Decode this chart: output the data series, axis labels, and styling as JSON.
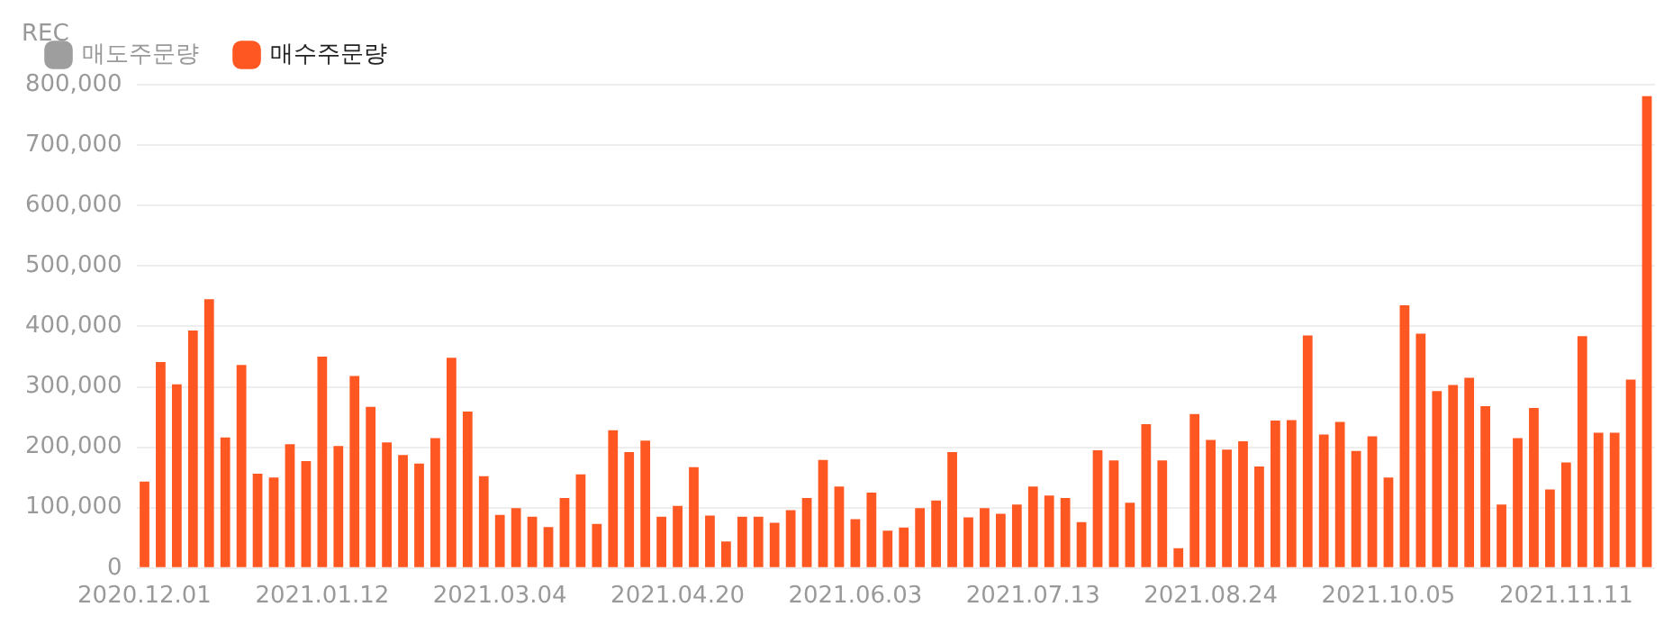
{
  "chart_data": {
    "type": "bar",
    "ylabel": "REC",
    "categories": [
      "2020.12.01",
      null,
      null,
      null,
      null,
      null,
      null,
      null,
      null,
      null,
      null,
      "2021.01.12",
      null,
      null,
      null,
      null,
      null,
      null,
      null,
      null,
      null,
      null,
      "2021.03.04",
      null,
      null,
      null,
      null,
      null,
      null,
      null,
      null,
      null,
      null,
      "2021.04.20",
      null,
      null,
      null,
      null,
      null,
      null,
      null,
      null,
      null,
      null,
      "2021.06.03",
      null,
      null,
      null,
      null,
      null,
      null,
      null,
      null,
      null,
      null,
      "2021.07.13",
      null,
      null,
      null,
      null,
      null,
      null,
      null,
      null,
      null,
      null,
      "2021.08.24",
      null,
      null,
      null,
      null,
      null,
      null,
      null,
      null,
      null,
      null,
      "2021.10.05",
      null,
      null,
      null,
      null,
      null,
      null,
      null,
      null,
      null,
      null,
      "2021.11.11",
      null,
      null,
      null,
      null,
      null
    ],
    "series": [
      {
        "name": "매도주문량",
        "color": "#9e9e9e",
        "values": [
          null,
          null,
          null,
          null,
          null,
          null,
          null,
          null,
          null,
          null,
          null,
          null,
          null,
          null,
          null,
          null,
          null,
          null,
          null,
          null,
          null,
          null,
          null,
          null,
          null,
          null,
          null,
          null,
          null,
          null,
          null,
          null,
          null,
          null,
          null,
          null,
          null,
          null,
          null,
          null,
          null,
          null,
          null,
          null,
          null,
          null,
          null,
          null,
          null,
          null,
          null,
          null,
          null,
          null,
          null,
          null,
          null,
          null,
          null,
          null,
          null,
          null,
          null,
          null,
          null,
          null,
          null,
          null,
          null,
          null,
          null,
          null,
          null,
          null,
          null,
          null,
          null,
          null,
          null,
          null,
          null,
          null,
          null,
          null,
          null,
          null,
          null,
          null,
          null,
          null,
          null,
          null,
          null,
          null
        ]
      },
      {
        "name": "매수주문량",
        "color": "#ff5722",
        "values": [
          143000,
          341000,
          304000,
          393000,
          445000,
          216000,
          336000,
          156000,
          150000,
          205000,
          177000,
          350000,
          202000,
          318000,
          267000,
          208000,
          187000,
          173000,
          215000,
          348000,
          259000,
          152000,
          88000,
          99000,
          85000,
          68000,
          116000,
          155000,
          73000,
          228000,
          192000,
          211000,
          85000,
          103000,
          167000,
          87000,
          44000,
          85000,
          85000,
          75000,
          96000,
          116000,
          179000,
          135000,
          81000,
          125000,
          62000,
          67000,
          99000,
          112000,
          192000,
          84000,
          99000,
          90000,
          105000,
          135000,
          120000,
          116000,
          76000,
          195000,
          178000,
          108000,
          238000,
          178000,
          33000,
          255000,
          212000,
          196000,
          210000,
          168000,
          244000,
          245000,
          385000,
          221000,
          242000,
          194000,
          218000,
          150000,
          435000,
          388000,
          293000,
          303000,
          315000,
          268000,
          105000,
          215000,
          265000,
          130000,
          175000,
          384000,
          224000,
          224000,
          312000,
          781000
        ]
      }
    ],
    "ylim": [
      0,
      800000
    ],
    "yticks": [
      {
        "value": 0,
        "label": "0"
      },
      {
        "value": 100000,
        "label": "100,000"
      },
      {
        "value": 200000,
        "label": "200,000"
      },
      {
        "value": 300000,
        "label": "300,000"
      },
      {
        "value": 400000,
        "label": "400,000"
      },
      {
        "value": 500000,
        "label": "500,000"
      },
      {
        "value": 600000,
        "label": "600,000"
      },
      {
        "value": 700000,
        "label": "700,000"
      },
      {
        "value": 800000,
        "label": "800,000"
      }
    ],
    "grid": "y",
    "legend": "top left"
  }
}
